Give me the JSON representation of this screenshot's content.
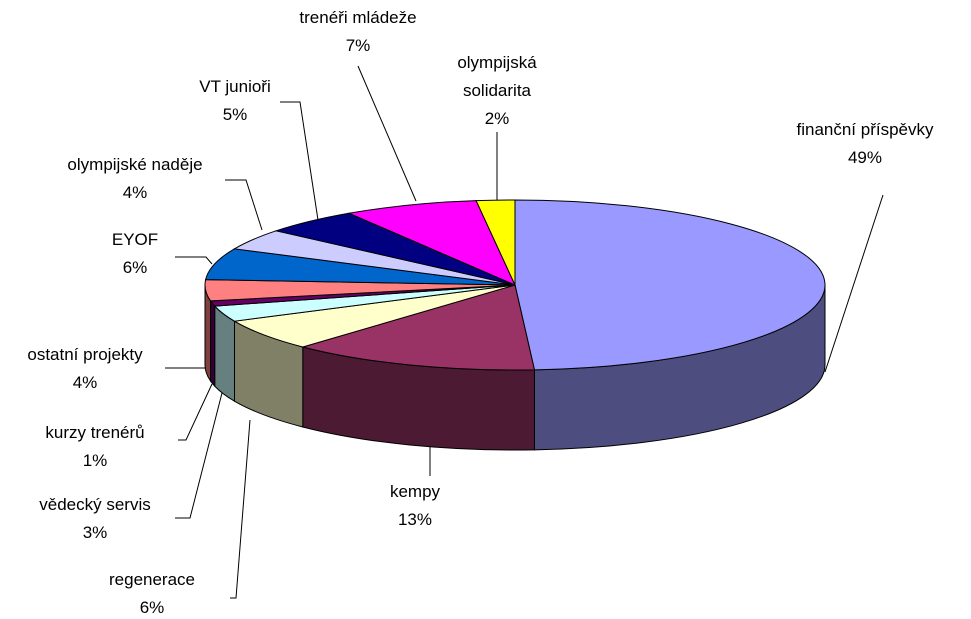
{
  "chart_data": {
    "type": "pie3d",
    "categories": [
      "finanční příspěvky",
      "kempy",
      "regenerace",
      "vědecký servis",
      "kurzy trenérů",
      "ostatní projekty",
      "EYOF",
      "olympijské naděje",
      "VT junioři",
      "trenéři mládeže",
      "olympijská solidarita"
    ],
    "values": [
      49,
      13,
      6,
      3,
      1,
      4,
      6,
      4,
      5,
      7,
      2
    ],
    "value_labels": [
      "49%",
      "13%",
      "6%",
      "3%",
      "1%",
      "4%",
      "6%",
      "4%",
      "5%",
      "7%",
      "2%"
    ],
    "colors": [
      "#9999FF",
      "#993366",
      "#FFFFCC",
      "#CCFFFF",
      "#660066",
      "#FF8080",
      "#0066CC",
      "#CCCCFF",
      "#000080",
      "#FF00FF",
      "#FFFF00"
    ]
  }
}
